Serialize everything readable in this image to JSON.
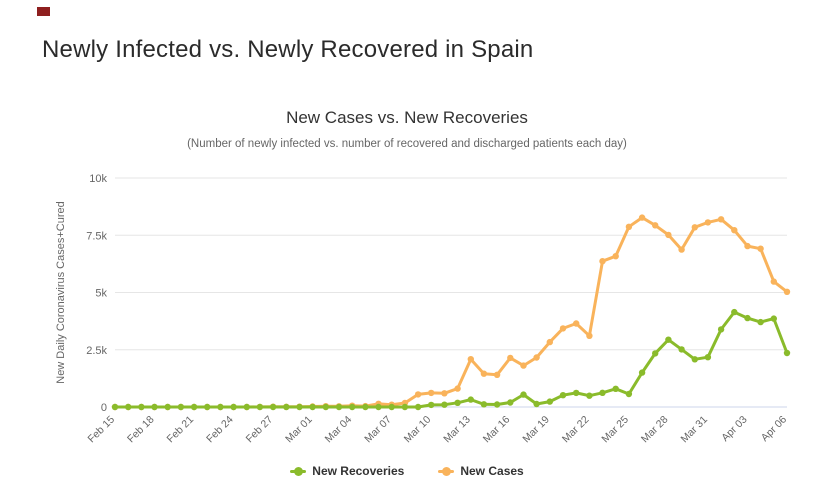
{
  "page": {
    "title": "Newly Infected vs. Newly Recovered in Spain"
  },
  "chart_data": {
    "type": "line",
    "title": "New Cases vs. New Recoveries",
    "subtitle": "(Number of newly infected vs. number of recovered and discharged patients each day)",
    "ylabel": "New Daily Coronavirus Cases+Cured",
    "ylim": [
      0,
      10000
    ],
    "grid": "horizontal",
    "legend_position": "bottom",
    "x_tick_interval": 3,
    "yticks": [
      {
        "value": 0,
        "label": "0"
      },
      {
        "value": 2500,
        "label": "2.5k"
      },
      {
        "value": 5000,
        "label": "5k"
      },
      {
        "value": 7500,
        "label": "7.5k"
      },
      {
        "value": 10000,
        "label": "10k"
      }
    ],
    "x": [
      "Feb 15",
      "Feb 16",
      "Feb 17",
      "Feb 18",
      "Feb 19",
      "Feb 20",
      "Feb 21",
      "Feb 22",
      "Feb 23",
      "Feb 24",
      "Feb 25",
      "Feb 26",
      "Feb 27",
      "Feb 28",
      "Feb 29",
      "Mar 01",
      "Mar 02",
      "Mar 03",
      "Mar 04",
      "Mar 05",
      "Mar 06",
      "Mar 07",
      "Mar 08",
      "Mar 09",
      "Mar 10",
      "Mar 11",
      "Mar 12",
      "Mar 13",
      "Mar 14",
      "Mar 15",
      "Mar 16",
      "Mar 17",
      "Mar 18",
      "Mar 19",
      "Mar 20",
      "Mar 21",
      "Mar 22",
      "Mar 23",
      "Mar 24",
      "Mar 25",
      "Mar 26",
      "Mar 27",
      "Mar 28",
      "Mar 29",
      "Mar 30",
      "Mar 31",
      "Apr 01",
      "Apr 02",
      "Apr 03",
      "Apr 04",
      "Apr 05",
      "Apr 06"
    ],
    "series": [
      {
        "name": "New Recoveries",
        "color": "#8abb2b",
        "values": [
          0,
          0,
          0,
          0,
          0,
          0,
          0,
          0,
          0,
          0,
          0,
          0,
          0,
          0,
          0,
          0,
          0,
          0,
          0,
          0,
          0,
          0,
          0,
          0,
          90,
          102,
          183,
          325,
          120,
          107,
          196,
          540,
          130,
          234,
          515,
          615,
          493,
          622,
          794,
          567,
          1504,
          2342,
          2937,
          2516,
          2084,
          2176,
          3388,
          4144,
          3880,
          3706,
          3861,
          2357
        ]
      },
      {
        "name": "New Cases",
        "color": "#f9b35b",
        "values": [
          0,
          0,
          0,
          0,
          0,
          0,
          0,
          0,
          0,
          0,
          2,
          6,
          12,
          7,
          13,
          20,
          35,
          30,
          55,
          40,
          140,
          100,
          175,
          550,
          615,
          600,
          805,
          2086,
          1454,
          1407,
          2144,
          1806,
          2162,
          2833,
          3431,
          3646,
          3107,
          6368,
          6584,
          7871,
          8271,
          7933,
          7516,
          6875,
          7846,
          8061,
          8195,
          7719,
          7026,
          6913,
          5478,
          5029
        ]
      }
    ]
  }
}
